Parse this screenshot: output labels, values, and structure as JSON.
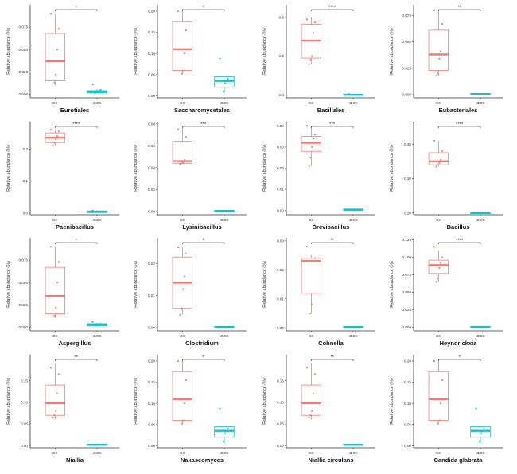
{
  "y_axis_label": "Relative abundance (%)",
  "groups": [
    "CK",
    "4MIC"
  ],
  "colors": {
    "CK": "#f07c72",
    "4MIC": "#1bbec4",
    "axis": "#333333"
  },
  "chart_data": [
    {
      "type": "box",
      "title": "Eurotiales",
      "ylim": [
        -0.004,
        0.1
      ],
      "yticks": [
        "0.000",
        "0.025",
        "0.050",
        "0.075"
      ],
      "ytick_values": [
        0,
        0.025,
        0.05,
        0.075
      ],
      "significance": "*",
      "boxes": {
        "CK": {
          "q1": 0.015,
          "median": 0.037,
          "q3": 0.068,
          "min": 0.01,
          "max": 0.09
        },
        "4MIC": {
          "q1": 0.0015,
          "median": 0.003,
          "q3": 0.004,
          "min": 0.001,
          "max": 0.006
        }
      },
      "points": {
        "CK": [
          0.09,
          0.073,
          0.05,
          0.022,
          0.013
        ],
        "4MIC": [
          0.011,
          0.005,
          0.003,
          0.0025,
          0.002,
          0.0015
        ]
      }
    },
    {
      "type": "box",
      "title": "Saccharomycetales",
      "ylim": [
        -0.005,
        0.215
      ],
      "yticks": [
        "0.00",
        "0.05",
        "0.10",
        "0.15",
        "0.20"
      ],
      "ytick_values": [
        0,
        0.05,
        0.1,
        0.15,
        0.2
      ],
      "significance": "*",
      "boxes": {
        "CK": {
          "q1": 0.06,
          "median": 0.11,
          "q3": 0.175,
          "min": 0.05,
          "max": 0.205
        },
        "4MIC": {
          "q1": 0.02,
          "median": 0.035,
          "q3": 0.045,
          "min": 0.005,
          "max": 0.045
        }
      },
      "points": {
        "CK": [
          0.2,
          0.155,
          0.1,
          0.06,
          0.052
        ],
        "4MIC": [
          0.088,
          0.04,
          0.035,
          0.03,
          0.01
        ]
      }
    },
    {
      "type": "box",
      "title": "Bacillales",
      "ylim": [
        0.385,
        0.865
      ],
      "yticks": [
        "0.4",
        "0.6",
        "0.8"
      ],
      "ytick_values": [
        0.4,
        0.6,
        0.8
      ],
      "significance": "****",
      "boxes": {
        "CK": {
          "q1": 0.59,
          "median": 0.68,
          "q3": 0.765,
          "min": 0.56,
          "max": 0.8
        },
        "4MIC": {
          "q1": 0.398,
          "median": 0.401,
          "q3": 0.404,
          "min": 0.396,
          "max": 0.406
        }
      },
      "points": {
        "CK": [
          0.79,
          0.775,
          0.72,
          0.6,
          0.58,
          0.56
        ],
        "4MIC": [
          0.405,
          0.4
        ]
      }
    },
    {
      "type": "box",
      "title": "Eubacteriales",
      "ylim": [
        -0.003,
        0.085
      ],
      "yticks": [
        "0.000",
        "0.025",
        "0.050",
        "0.075"
      ],
      "ytick_values": [
        0,
        0.025,
        0.05,
        0.075
      ],
      "significance": "**",
      "boxes": {
        "CK": {
          "q1": 0.023,
          "median": 0.038,
          "q3": 0.061,
          "min": 0.018,
          "max": 0.08
        },
        "4MIC": {
          "q1": 0.0003,
          "median": 0.0006,
          "q3": 0.001,
          "min": 0.0002,
          "max": 0.0012
        }
      },
      "points": {
        "CK": [
          0.08,
          0.067,
          0.041,
          0.034,
          0.02,
          0.018
        ],
        "4MIC": [
          0.001,
          0.0005
        ]
      }
    },
    {
      "type": "box",
      "title": "Paenibacillus",
      "ylim": [
        -0.005,
        0.285
      ],
      "yticks": [
        "0.0",
        "0.1",
        "0.2"
      ],
      "ytick_values": [
        0,
        0.1,
        0.2
      ],
      "significance": "****",
      "boxes": {
        "CK": {
          "q1": 0.22,
          "median": 0.235,
          "q3": 0.25,
          "min": 0.21,
          "max": 0.26
        },
        "4MIC": {
          "q1": 0.002,
          "median": 0.004,
          "q3": 0.007,
          "min": 0.001,
          "max": 0.008
        }
      },
      "points": {
        "CK": [
          0.26,
          0.255,
          0.24,
          0.23,
          0.22,
          0.21
        ],
        "4MIC": [
          0.008,
          0.004
        ]
      }
    },
    {
      "type": "box",
      "title": "Lysinibacillus",
      "ylim": [
        -0.003,
        0.082
      ],
      "yticks": [
        "0.00",
        "0.02",
        "0.04",
        "0.06",
        "0.08"
      ],
      "ytick_values": [
        0,
        0.02,
        0.04,
        0.06,
        0.08
      ],
      "significance": "***",
      "boxes": {
        "CK": {
          "q1": 0.044,
          "median": 0.046,
          "q3": 0.064,
          "min": 0.043,
          "max": 0.076
        },
        "4MIC": {
          "q1": 0.0002,
          "median": 0.0005,
          "q3": 0.0008,
          "min": 0.0001,
          "max": 0.001
        }
      },
      "points": {
        "CK": [
          0.075,
          0.068,
          0.047,
          0.045,
          0.044,
          0.043
        ],
        "4MIC": [
          0.0005
        ]
      }
    },
    {
      "type": "box",
      "title": "Brevibacillus",
      "ylim": [
        -0.002,
        0.042
      ],
      "yticks": [
        "0.00",
        "0.01",
        "0.02",
        "0.03",
        "0.04"
      ],
      "ytick_values": [
        0,
        0.01,
        0.02,
        0.03,
        0.04
      ],
      "significance": "***",
      "boxes": {
        "CK": {
          "q1": 0.028,
          "median": 0.032,
          "q3": 0.035,
          "min": 0.021,
          "max": 0.04
        },
        "4MIC": {
          "q1": 0.0002,
          "median": 0.0004,
          "q3": 0.0006,
          "min": 0.0001,
          "max": 0.0008
        }
      },
      "points": {
        "CK": [
          0.04,
          0.036,
          0.034,
          0.03,
          0.025,
          0.021
        ],
        "4MIC": [
          0.0004
        ]
      }
    },
    {
      "type": "box",
      "title": "Bacillus",
      "ylim": [
        0.195,
        0.465
      ],
      "yticks": [
        "0.20",
        "0.30",
        "0.40"
      ],
      "ytick_values": [
        0.2,
        0.3,
        0.4
      ],
      "significance": "****",
      "boxes": {
        "CK": {
          "q1": 0.34,
          "median": 0.35,
          "q3": 0.375,
          "min": 0.335,
          "max": 0.41
        },
        "4MIC": {
          "q1": 0.199,
          "median": 0.2,
          "q3": 0.201,
          "min": 0.198,
          "max": 0.202
        }
      },
      "points": {
        "CK": [
          0.41,
          0.38,
          0.355,
          0.345,
          0.34,
          0.335
        ],
        "4MIC": [
          0.2
        ]
      }
    },
    {
      "type": "box",
      "title": "Aspergillus",
      "ylim": [
        -0.004,
        0.1
      ],
      "yticks": [
        "0.000",
        "0.025",
        "0.050",
        "0.075"
      ],
      "ytick_values": [
        0,
        0.025,
        0.05,
        0.075
      ],
      "significance": "*",
      "boxes": {
        "CK": {
          "q1": 0.015,
          "median": 0.035,
          "q3": 0.067,
          "min": 0.01,
          "max": 0.09
        },
        "4MIC": {
          "q1": 0.0015,
          "median": 0.003,
          "q3": 0.004,
          "min": 0.001,
          "max": 0.005
        }
      },
      "points": {
        "CK": [
          0.09,
          0.073,
          0.05,
          0.022,
          0.013
        ],
        "4MIC": [
          0.006,
          0.004,
          0.003,
          0.002
        ]
      }
    },
    {
      "type": "box",
      "title": "Clostridium",
      "ylim": [
        -0.001,
        0.028
      ],
      "yticks": [
        "0.00",
        "0.01",
        "0.02"
      ],
      "ytick_values": [
        0,
        0.01,
        0.02
      ],
      "significance": "*",
      "boxes": {
        "CK": {
          "q1": 0.006,
          "median": 0.014,
          "q3": 0.022,
          "min": 0.004,
          "max": 0.025
        },
        "4MIC": {
          "q1": 0.0001,
          "median": 0.0002,
          "q3": 0.0003,
          "min": 0.0001,
          "max": 0.0004
        }
      },
      "points": {
        "CK": [
          0.025,
          0.023,
          0.016,
          0.012,
          0.006,
          0.004
        ],
        "4MIC": [
          0.0003
        ]
      }
    },
    {
      "type": "box",
      "title": "Cohnella",
      "ylim": [
        -0.001,
        0.031
      ],
      "yticks": [
        "0.00",
        "0.01",
        "0.02",
        "0.03"
      ],
      "ytick_values": [
        0,
        0.01,
        0.02,
        0.03
      ],
      "significance": "**",
      "boxes": {
        "CK": {
          "q1": 0.012,
          "median": 0.023,
          "q3": 0.024,
          "min": 0.005,
          "max": 0.025
        },
        "4MIC": {
          "q1": 0.0002,
          "median": 0.0003,
          "q3": 0.0005,
          "min": 0.0001,
          "max": 0.0006
        }
      },
      "points": {
        "CK": [
          0.028,
          0.024,
          0.023,
          0.008,
          0.005
        ],
        "4MIC": [
          0.0003
        ]
      }
    },
    {
      "type": "box",
      "title": "Heyndrickxia",
      "ylim": [
        -0.005,
        0.128
      ],
      "yticks": [
        "0.000",
        "0.025",
        "0.050",
        "0.075",
        "0.100",
        "0.125"
      ],
      "ytick_values": [
        0,
        0.025,
        0.05,
        0.075,
        0.1,
        0.125
      ],
      "significance": "****",
      "boxes": {
        "CK": {
          "q1": 0.077,
          "median": 0.089,
          "q3": 0.096,
          "min": 0.065,
          "max": 0.11
        },
        "4MIC": {
          "q1": 0.0003,
          "median": 0.0006,
          "q3": 0.001,
          "min": 0.0002,
          "max": 0.0012
        }
      },
      "points": {
        "CK": [
          0.115,
          0.1,
          0.092,
          0.085,
          0.07,
          0.065
        ],
        "4MIC": [
          0.0006
        ]
      }
    },
    {
      "type": "box",
      "title": "Niallia",
      "ylim": [
        -0.005,
        0.21
      ],
      "yticks": [
        "0.00",
        "0.05",
        "0.10",
        "0.15"
      ],
      "ytick_values": [
        0,
        0.05,
        0.1,
        0.15
      ],
      "significance": "**",
      "boxes": {
        "CK": {
          "q1": 0.07,
          "median": 0.098,
          "q3": 0.14,
          "min": 0.06,
          "max": 0.19
        },
        "4MIC": {
          "q1": 0.001,
          "median": 0.002,
          "q3": 0.003,
          "min": 0.0005,
          "max": 0.004
        }
      },
      "points": {
        "CK": [
          0.18,
          0.165,
          0.12,
          0.08,
          0.07,
          0.065
        ],
        "4MIC": [
          0.002
        ]
      }
    },
    {
      "type": "box",
      "title": "Nakaseomyces",
      "ylim": [
        -0.005,
        0.215
      ],
      "yticks": [
        "0.00",
        "0.05",
        "0.10",
        "0.15",
        "0.20"
      ],
      "ytick_values": [
        0,
        0.05,
        0.1,
        0.15,
        0.2
      ],
      "significance": "*",
      "boxes": {
        "CK": {
          "q1": 0.06,
          "median": 0.11,
          "q3": 0.175,
          "min": 0.05,
          "max": 0.205
        },
        "4MIC": {
          "q1": 0.02,
          "median": 0.035,
          "q3": 0.045,
          "min": 0.005,
          "max": 0.045
        }
      },
      "points": {
        "CK": [
          0.2,
          0.155,
          0.1,
          0.06,
          0.052
        ],
        "4MIC": [
          0.088,
          0.04,
          0.035,
          0.03,
          0.01
        ]
      }
    },
    {
      "type": "box",
      "title": "Niallia circulans",
      "ylim": [
        -0.005,
        0.21
      ],
      "yticks": [
        "0.00",
        "0.05",
        "0.10",
        "0.15"
      ],
      "ytick_values": [
        0,
        0.05,
        0.1,
        0.15
      ],
      "significance": "**",
      "boxes": {
        "CK": {
          "q1": 0.07,
          "median": 0.098,
          "q3": 0.14,
          "min": 0.06,
          "max": 0.19
        },
        "4MIC": {
          "q1": 0.001,
          "median": 0.002,
          "q3": 0.003,
          "min": 0.0005,
          "max": 0.004
        }
      },
      "points": {
        "CK": [
          0.18,
          0.165,
          0.12,
          0.08,
          0.07,
          0.065
        ],
        "4MIC": [
          0.002
        ]
      }
    },
    {
      "type": "box",
      "title": "Candida glabrata",
      "ylim": [
        -0.005,
        0.215
      ],
      "yticks": [
        "0.00",
        "0.05",
        "0.10",
        "0.15",
        "0.20"
      ],
      "ytick_values": [
        0,
        0.05,
        0.1,
        0.15,
        0.2
      ],
      "significance": "*",
      "boxes": {
        "CK": {
          "q1": 0.06,
          "median": 0.11,
          "q3": 0.175,
          "min": 0.05,
          "max": 0.205
        },
        "4MIC": {
          "q1": 0.02,
          "median": 0.035,
          "q3": 0.045,
          "min": 0.005,
          "max": 0.045
        }
      },
      "points": {
        "CK": [
          0.2,
          0.155,
          0.1,
          0.06,
          0.052
        ],
        "4MIC": [
          0.088,
          0.04,
          0.035,
          0.03,
          0.01
        ]
      }
    }
  ]
}
